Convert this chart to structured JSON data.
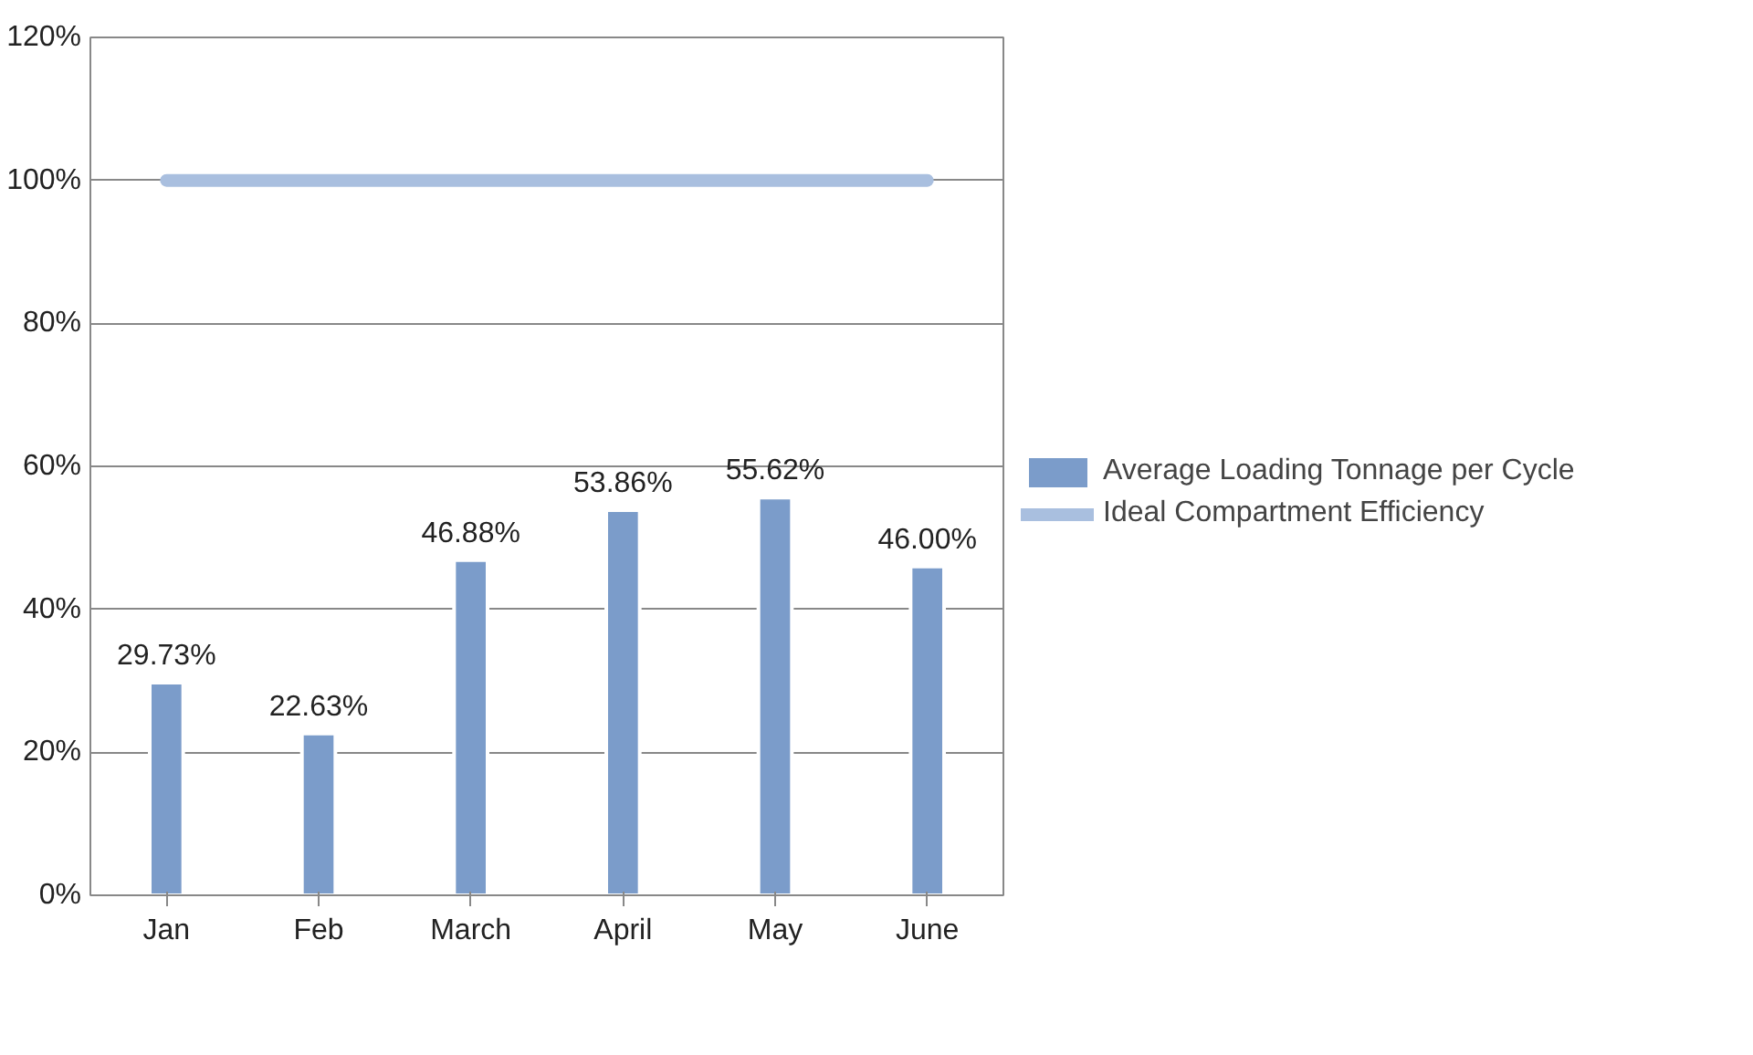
{
  "chart_data": {
    "type": "bar",
    "categories": [
      "Jan",
      "Feb",
      "March",
      "April",
      "May",
      "June"
    ],
    "series": [
      {
        "name": "Average Loading Tonnage per Cycle",
        "color": "#7b9cca",
        "values": [
          29.73,
          22.63,
          46.88,
          53.86,
          55.62,
          46.0
        ],
        "value_labels": [
          "29.73%",
          "22.63%",
          "46.88%",
          "53.86%",
          "55.62%",
          "46.00%"
        ]
      },
      {
        "name": "Ideal Compartment Efficiency",
        "type": "line",
        "color": "#a9bfdf",
        "values": [
          100,
          100,
          100,
          100,
          100,
          100
        ]
      }
    ],
    "ylim": [
      0,
      120
    ],
    "yticks": [
      {
        "value": 0,
        "label": "0%"
      },
      {
        "value": 20,
        "label": "20%"
      },
      {
        "value": 40,
        "label": "40%"
      },
      {
        "value": 60,
        "label": "60%"
      },
      {
        "value": 80,
        "label": "80%"
      },
      {
        "value": 100,
        "label": "100%"
      },
      {
        "value": 120,
        "label": "120%"
      }
    ],
    "grid": "y",
    "legend": "right"
  }
}
